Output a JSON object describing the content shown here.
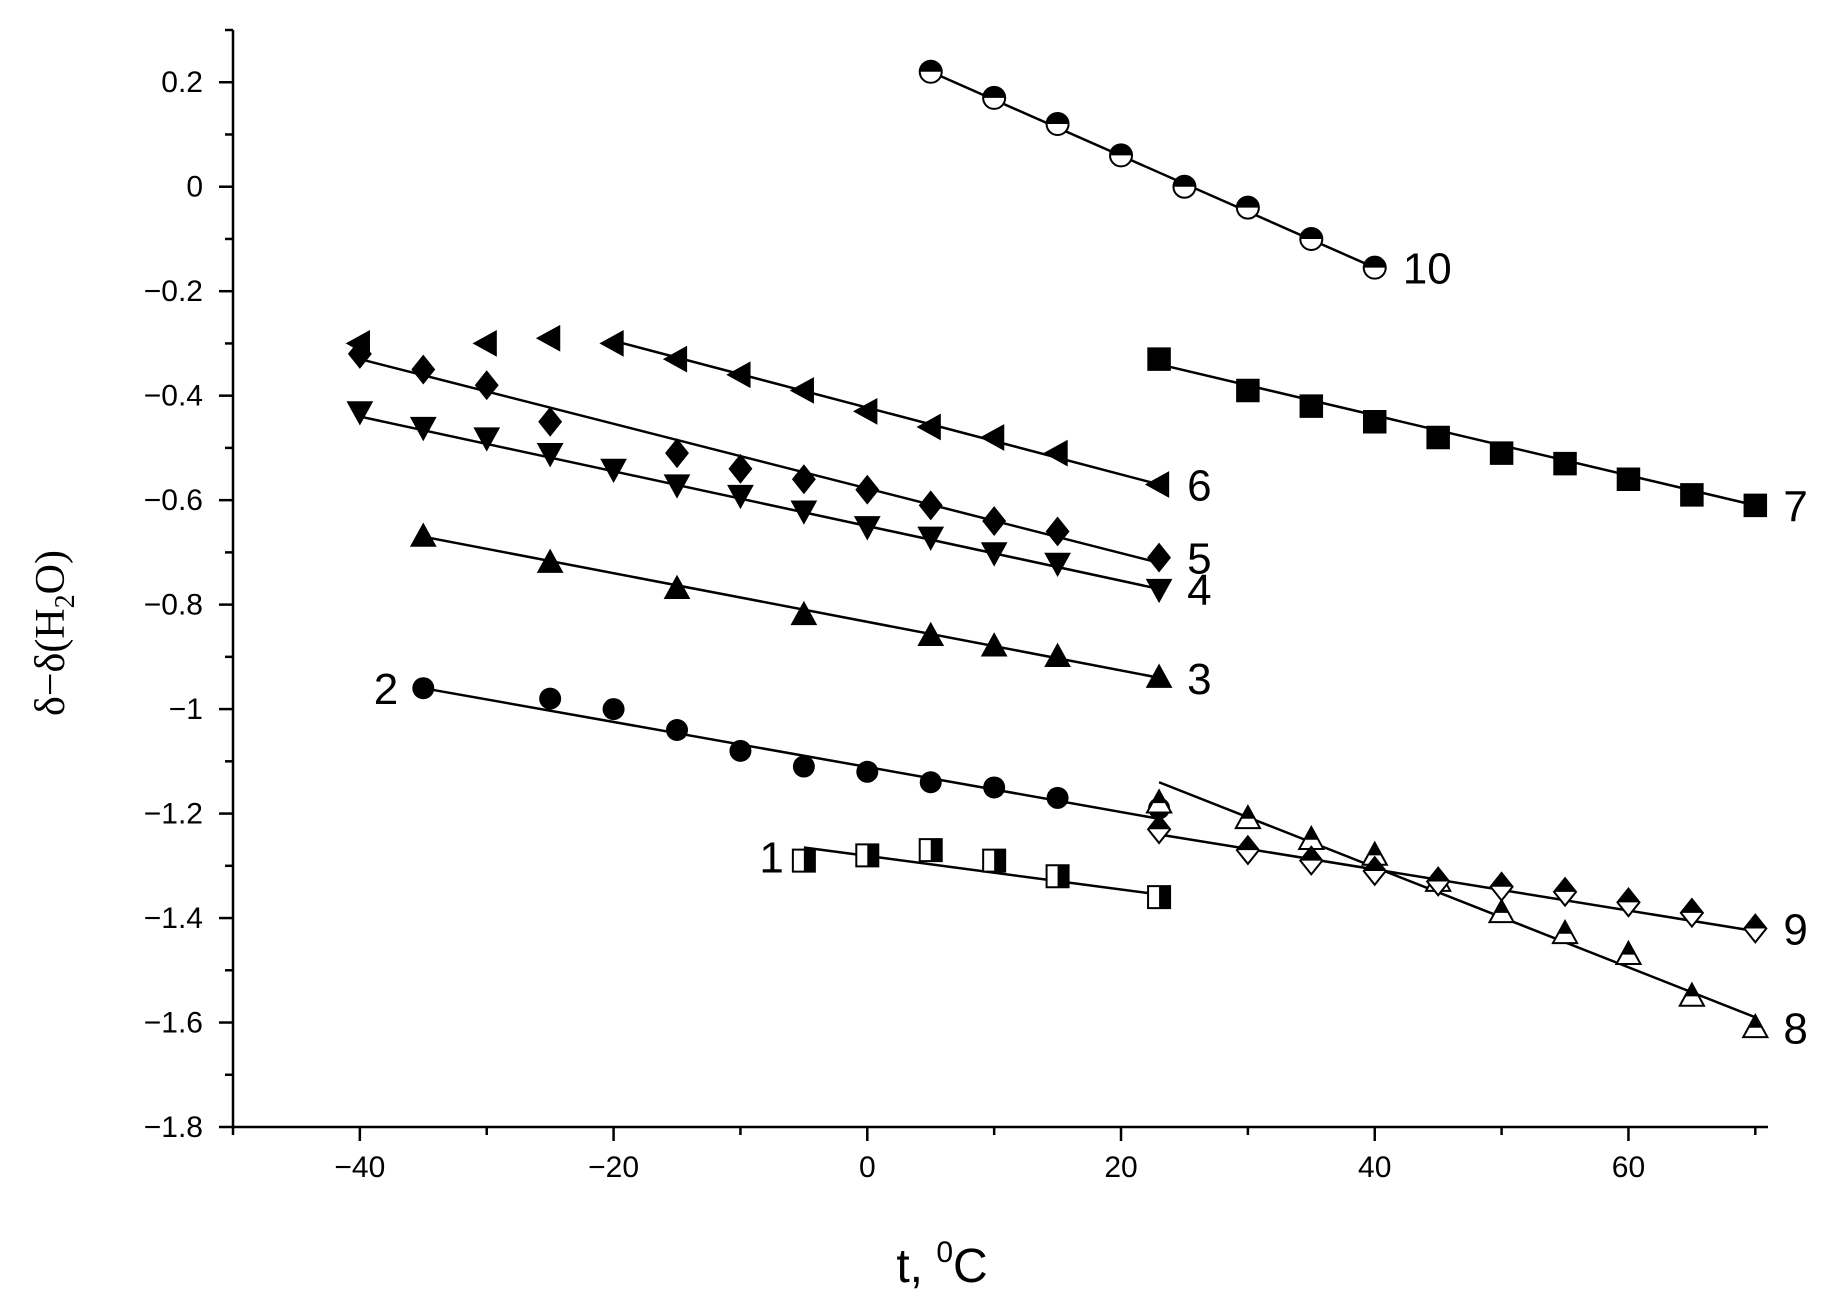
{
  "chart_data": {
    "type": "scatter",
    "title": "",
    "xlabel": "t, ",
    "xlabel_sup": "0",
    "xlabel_unit": "C",
    "ylabel": "δ−δ(H",
    "ylabel_sub": "2",
    "ylabel_end": "O)",
    "xlim": [
      -50,
      71
    ],
    "ylim": [
      -1.8,
      0.3
    ],
    "x_ticks": [
      -40,
      -20,
      0,
      20,
      40,
      60
    ],
    "x_tick_labels": [
      "−40",
      "−20",
      "0",
      "20",
      "40",
      "60"
    ],
    "y_ticks": [
      0.2,
      0,
      -0.2,
      -0.4,
      -0.6,
      -0.8,
      -1,
      -1.2,
      -1.4,
      -1.6,
      -1.8
    ],
    "y_tick_labels": [
      "0.2",
      "0",
      "−0.2",
      "−0.4",
      "−0.6",
      "−0.8",
      "−1",
      "−1.2",
      "−1.4",
      "−1.6",
      "−1.8"
    ],
    "grid": false,
    "legend": "none",
    "series": [
      {
        "name": "1",
        "marker": "square-half",
        "x": [
          -5,
          0,
          5,
          10,
          15,
          23
        ],
        "y": [
          -1.29,
          -1.28,
          -1.27,
          -1.29,
          -1.32,
          -1.36
        ],
        "fit": [
          [
            -5,
            -1.265
          ],
          [
            23,
            -1.355
          ]
        ]
      },
      {
        "name": "2",
        "marker": "circle-filled",
        "x": [
          -35,
          -25,
          -20,
          -15,
          -10,
          -5,
          0,
          5,
          10,
          15,
          23
        ],
        "y": [
          -0.96,
          -0.98,
          -1.0,
          -1.04,
          -1.08,
          -1.11,
          -1.12,
          -1.14,
          -1.15,
          -1.17,
          -1.19
        ],
        "fit": [
          [
            -35,
            -0.96
          ],
          [
            23,
            -1.21
          ]
        ]
      },
      {
        "name": "3",
        "marker": "triangle-up-filled",
        "x": [
          -35,
          -25,
          -15,
          -5,
          5,
          10,
          15,
          23
        ],
        "y": [
          -0.67,
          -0.72,
          -0.77,
          -0.82,
          -0.86,
          -0.88,
          -0.9,
          -0.94
        ],
        "fit": [
          [
            -35,
            -0.67
          ],
          [
            23,
            -0.94
          ]
        ]
      },
      {
        "name": "4",
        "marker": "triangle-down-filled",
        "x": [
          -40,
          -35,
          -30,
          -25,
          -20,
          -15,
          -10,
          -5,
          0,
          5,
          10,
          15,
          23
        ],
        "y": [
          -0.43,
          -0.46,
          -0.48,
          -0.51,
          -0.54,
          -0.57,
          -0.59,
          -0.62,
          -0.65,
          -0.67,
          -0.7,
          -0.72,
          -0.77
        ],
        "fit": [
          [
            -40,
            -0.44
          ],
          [
            23,
            -0.77
          ]
        ]
      },
      {
        "name": "5",
        "marker": "diamond-filled",
        "x": [
          -40,
          -35,
          -30,
          -25,
          -15,
          -10,
          -5,
          0,
          5,
          10,
          15,
          23
        ],
        "y": [
          -0.32,
          -0.35,
          -0.38,
          -0.45,
          -0.51,
          -0.54,
          -0.56,
          -0.58,
          -0.61,
          -0.64,
          -0.66,
          -0.71
        ],
        "fit": [
          [
            -40,
            -0.33
          ],
          [
            23,
            -0.72
          ]
        ]
      },
      {
        "name": "6",
        "marker": "triangle-left-filled",
        "x": [
          -40,
          -30,
          -25,
          -20,
          -15,
          -10,
          -5,
          0,
          5,
          10,
          15,
          23
        ],
        "y": [
          -0.3,
          -0.3,
          -0.29,
          -0.3,
          -0.33,
          -0.36,
          -0.39,
          -0.43,
          -0.46,
          -0.48,
          -0.51,
          -0.57
        ],
        "fit": [
          [
            -20,
            -0.295
          ],
          [
            23,
            -0.57
          ]
        ]
      },
      {
        "name": "7",
        "marker": "square-filled",
        "x": [
          23,
          30,
          35,
          40,
          45,
          50,
          55,
          60,
          65,
          70
        ],
        "y": [
          -0.33,
          -0.39,
          -0.42,
          -0.45,
          -0.48,
          -0.51,
          -0.53,
          -0.56,
          -0.59,
          -0.61
        ],
        "fit": [
          [
            23,
            -0.34
          ],
          [
            70,
            -0.61
          ]
        ]
      },
      {
        "name": "8",
        "marker": "triangle-up-half",
        "x": [
          23,
          30,
          35,
          40,
          45,
          50,
          55,
          60,
          65,
          70
        ],
        "y": [
          -1.18,
          -1.21,
          -1.25,
          -1.28,
          -1.33,
          -1.39,
          -1.43,
          -1.47,
          -1.55,
          -1.61
        ],
        "fit": [
          [
            23,
            -1.14
          ],
          [
            70,
            -1.59
          ]
        ]
      },
      {
        "name": "9",
        "marker": "diamond-half",
        "x": [
          23,
          30,
          35,
          40,
          45,
          50,
          55,
          60,
          65,
          70
        ],
        "y": [
          -1.23,
          -1.27,
          -1.29,
          -1.31,
          -1.33,
          -1.34,
          -1.35,
          -1.37,
          -1.39,
          -1.42
        ],
        "fit": [
          [
            23,
            -1.24
          ],
          [
            70,
            -1.425
          ]
        ]
      },
      {
        "name": "10",
        "marker": "circle-half",
        "x": [
          5,
          10,
          15,
          20,
          25,
          30,
          35,
          40
        ],
        "y": [
          0.22,
          0.17,
          0.12,
          0.06,
          0.0,
          -0.04,
          -0.1,
          -0.155
        ],
        "fit": [
          [
            5,
            0.22
          ],
          [
            40,
            -0.155
          ]
        ]
      }
    ]
  }
}
